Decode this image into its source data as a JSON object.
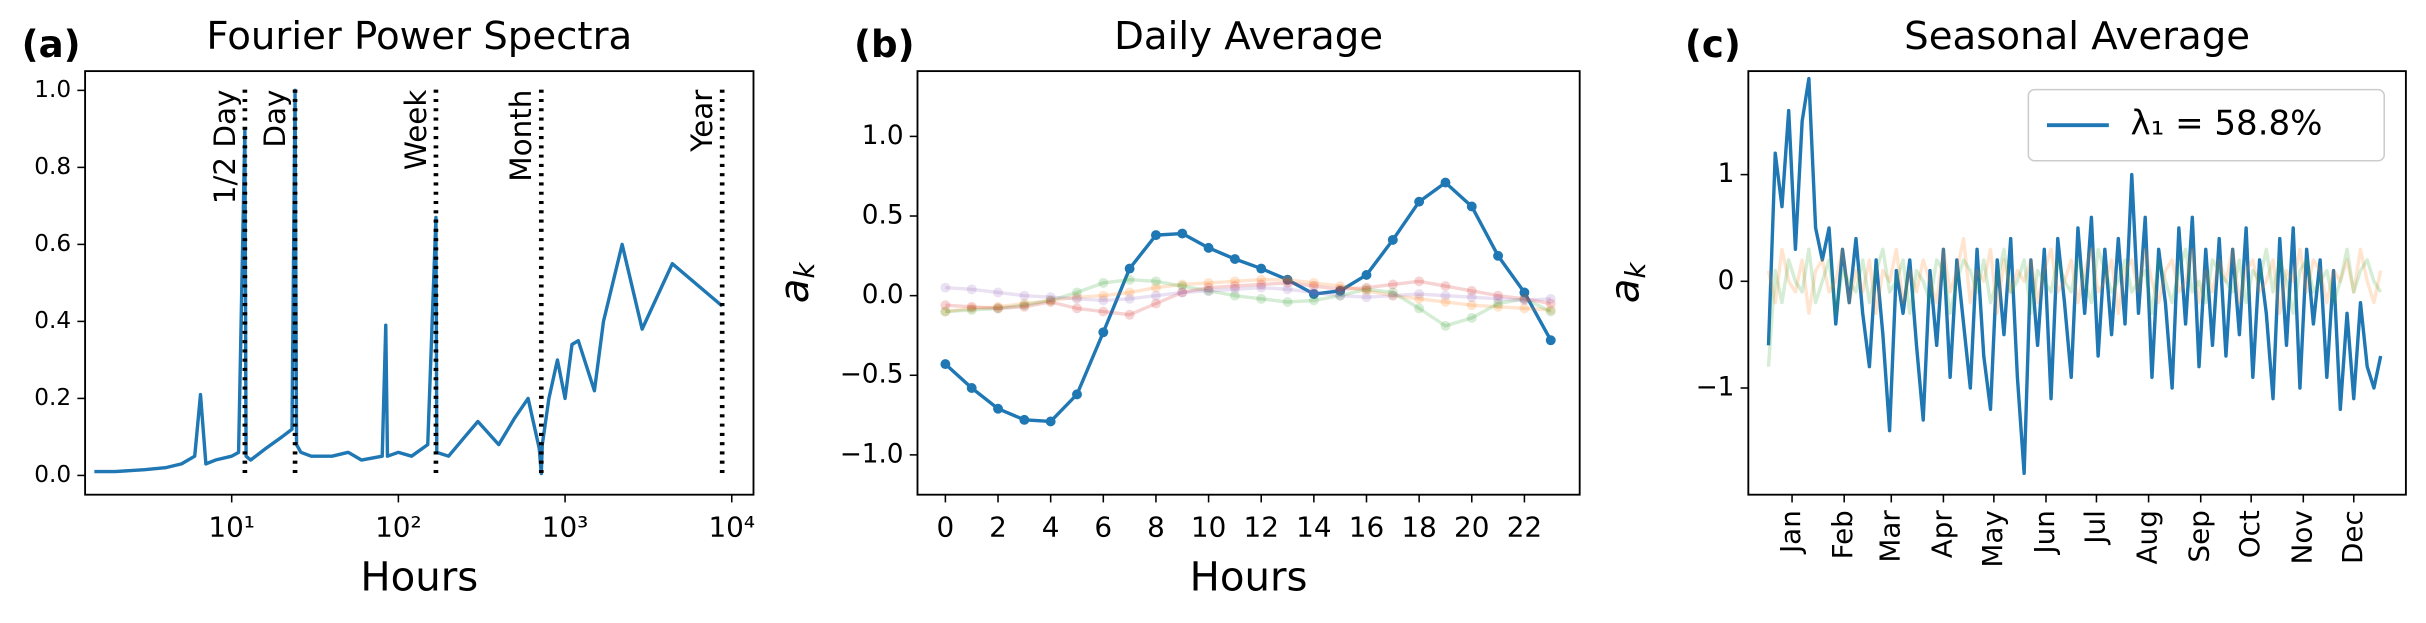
{
  "chart_data": [
    {
      "type": "line",
      "panel_label": "(a)",
      "title": "Fourier Power Spectra",
      "xlabel": "Hours",
      "xscale": "log",
      "xlim": [
        1.32,
        13500
      ],
      "ylim": [
        -0.05,
        1.05
      ],
      "xticks": [
        {
          "value": 10,
          "label": "10¹"
        },
        {
          "value": 100,
          "label": "10²"
        },
        {
          "value": 1000,
          "label": "10³"
        },
        {
          "value": 10000,
          "label": "10⁴"
        }
      ],
      "yticks": [
        {
          "value": 0,
          "label": "0.0"
        },
        {
          "value": 0.2,
          "label": "0.2"
        },
        {
          "value": 0.4,
          "label": "0.4"
        },
        {
          "value": 0.6,
          "label": "0.6"
        },
        {
          "value": 0.8,
          "label": "0.8"
        },
        {
          "value": 1,
          "label": "1.0"
        }
      ],
      "x": [
        1.5,
        2,
        3,
        4,
        5,
        6,
        6.5,
        7,
        8,
        10,
        11,
        12,
        12.2,
        13,
        16,
        20,
        23,
        24,
        24.5,
        26,
        30,
        40,
        50,
        60,
        80,
        84,
        86,
        100,
        120,
        150,
        168,
        170,
        200,
        250,
        300,
        400,
        500,
        600,
        700,
        720,
        730,
        800,
        900,
        1000,
        1100,
        1200,
        1500,
        1700,
        2200,
        2900,
        4400,
        8760
      ],
      "series": [
        {
          "color": "#1f77b4",
          "values": [
            0.01,
            0.01,
            0.015,
            0.02,
            0.03,
            0.05,
            0.21,
            0.03,
            0.04,
            0.05,
            0.06,
            0.9,
            0.05,
            0.04,
            0.07,
            0.1,
            0.12,
            1.0,
            0.08,
            0.06,
            0.05,
            0.05,
            0.06,
            0.04,
            0.05,
            0.39,
            0.05,
            0.06,
            0.05,
            0.08,
            0.67,
            0.06,
            0.05,
            0.1,
            0.14,
            0.08,
            0.15,
            0.2,
            0.07,
            0.005,
            0.08,
            0.2,
            0.3,
            0.2,
            0.34,
            0.35,
            0.22,
            0.4,
            0.6,
            0.38,
            0.55,
            0.44
          ]
        }
      ],
      "annotations": [
        {
          "x": 12,
          "label": "1/2 Day"
        },
        {
          "x": 24,
          "label": "Day"
        },
        {
          "x": 168,
          "label": "Week"
        },
        {
          "x": 720,
          "label": "Month"
        },
        {
          "x": 8760,
          "label": "Year"
        }
      ]
    },
    {
      "type": "line",
      "panel_label": "(b)",
      "title": "Daily Average",
      "xlabel": "Hours",
      "ylabel": "a",
      "ylabel_sub": "k",
      "marker": true,
      "xlim": [
        -1.06,
        24.1
      ],
      "ylim": [
        -1.25,
        1.41
      ],
      "xticks": [
        0,
        2,
        4,
        6,
        8,
        10,
        12,
        14,
        16,
        18,
        20,
        22
      ],
      "yticks": [
        {
          "value": -1,
          "label": "−1.0"
        },
        {
          "value": -0.5,
          "label": "−0.5"
        },
        {
          "value": 0,
          "label": "0.0"
        },
        {
          "value": 0.5,
          "label": "0.5"
        },
        {
          "value": 1,
          "label": "1.0"
        }
      ],
      "x": [
        0,
        1,
        2,
        3,
        4,
        5,
        6,
        7,
        8,
        9,
        10,
        11,
        12,
        13,
        14,
        15,
        16,
        17,
        18,
        19,
        20,
        21,
        22,
        23
      ],
      "series": [
        {
          "color": "#1f77b4",
          "values": [
            -0.43,
            -0.58,
            -0.71,
            -0.78,
            -0.79,
            -0.62,
            -0.23,
            0.17,
            0.38,
            0.39,
            0.3,
            0.23,
            0.17,
            0.1,
            0.01,
            0.03,
            0.13,
            0.35,
            0.59,
            0.71,
            0.56,
            0.25,
            0.02,
            -0.28
          ]
        },
        {
          "color": "#ff7f0e",
          "alpha": 0.2,
          "values": [
            -0.1,
            -0.08,
            -0.07,
            -0.05,
            -0.03,
            -0.01,
            0.0,
            0.02,
            0.05,
            0.07,
            0.08,
            0.09,
            0.1,
            0.1,
            0.08,
            0.06,
            0.03,
            0.0,
            -0.02,
            -0.04,
            -0.06,
            -0.07,
            -0.08,
            -0.09
          ]
        },
        {
          "color": "#2ca02c",
          "alpha": 0.2,
          "values": [
            -0.1,
            -0.09,
            -0.08,
            -0.06,
            -0.03,
            0.02,
            0.08,
            0.1,
            0.09,
            0.06,
            0.03,
            0.0,
            -0.02,
            -0.04,
            -0.03,
            0.0,
            0.04,
            0.02,
            -0.08,
            -0.19,
            -0.14,
            -0.05,
            -0.02,
            -0.1
          ]
        },
        {
          "color": "#d62728",
          "alpha": 0.2,
          "values": [
            -0.06,
            -0.07,
            -0.08,
            -0.07,
            -0.04,
            -0.08,
            -0.1,
            -0.12,
            -0.05,
            0.02,
            0.05,
            0.06,
            0.07,
            0.08,
            0.06,
            0.04,
            0.05,
            0.07,
            0.09,
            0.06,
            0.03,
            0.0,
            -0.02,
            -0.05
          ]
        },
        {
          "color": "#9467bd",
          "alpha": 0.2,
          "values": [
            0.05,
            0.04,
            0.02,
            0.0,
            -0.01,
            -0.02,
            -0.03,
            -0.02,
            0.0,
            0.02,
            0.03,
            0.04,
            0.05,
            0.04,
            0.02,
            0.0,
            -0.01,
            0.0,
            0.01,
            0.0,
            -0.01,
            -0.02,
            -0.03,
            -0.02
          ]
        }
      ]
    },
    {
      "type": "line",
      "panel_label": "(c)",
      "title": "Seasonal Average",
      "ylabel": "a",
      "ylabel_sub": "k",
      "legend": "upper right",
      "xlim": [
        -11,
        380
      ],
      "ylim": [
        -2.0,
        1.97
      ],
      "xticks": [
        {
          "value": 15,
          "label": "Jan"
        },
        {
          "value": 46,
          "label": "Feb"
        },
        {
          "value": 74,
          "label": "Mar"
        },
        {
          "value": 105,
          "label": "Apr"
        },
        {
          "value": 135,
          "label": "May"
        },
        {
          "value": 166,
          "label": "Jun"
        },
        {
          "value": 196,
          "label": "Jul"
        },
        {
          "value": 227,
          "label": "Aug"
        },
        {
          "value": 258,
          "label": "Sep"
        },
        {
          "value": 288,
          "label": "Oct"
        },
        {
          "value": 319,
          "label": "Nov"
        },
        {
          "value": 349,
          "label": "Dec"
        }
      ],
      "yticks": [
        {
          "value": -1,
          "label": "−1"
        },
        0,
        1
      ],
      "x": [
        1,
        5,
        9,
        13,
        17,
        21,
        25,
        29,
        33,
        37,
        41,
        45,
        49,
        53,
        57,
        61,
        65,
        69,
        73,
        77,
        81,
        85,
        89,
        93,
        97,
        101,
        105,
        109,
        113,
        117,
        121,
        125,
        129,
        133,
        137,
        141,
        145,
        149,
        153,
        157,
        161,
        165,
        169,
        173,
        177,
        181,
        185,
        189,
        193,
        197,
        201,
        205,
        209,
        213,
        217,
        221,
        225,
        229,
        233,
        237,
        241,
        245,
        249,
        253,
        257,
        261,
        265,
        269,
        273,
        277,
        281,
        285,
        289,
        293,
        297,
        301,
        305,
        309,
        313,
        317,
        321,
        325,
        329,
        333,
        337,
        341,
        345,
        349,
        353,
        357,
        361,
        365
      ],
      "series": [
        {
          "name": "λ₁ = 58.8%",
          "color": "#1f77b4",
          "values": [
            -0.6,
            1.2,
            0.7,
            1.6,
            0.3,
            1.5,
            1.9,
            0.5,
            0.2,
            0.5,
            -0.4,
            0.3,
            -0.2,
            0.4,
            -0.3,
            -0.8,
            0.2,
            -0.5,
            -1.4,
            0.1,
            -0.3,
            0.2,
            -0.6,
            -1.3,
            0.1,
            -0.6,
            0.3,
            -0.9,
            0.2,
            -0.4,
            -1.0,
            0.3,
            -0.7,
            -1.2,
            0.2,
            -0.5,
            0.4,
            -0.9,
            -1.8,
            0.2,
            -0.6,
            0.3,
            -1.1,
            0.4,
            -0.2,
            -0.9,
            0.5,
            -0.3,
            0.6,
            -0.7,
            0.3,
            -0.5,
            0.4,
            -0.4,
            1.0,
            -0.3,
            0.6,
            -0.9,
            0.3,
            -0.2,
            -1.0,
            0.5,
            -0.4,
            0.6,
            -0.8,
            0.3,
            -0.6,
            0.4,
            -0.7,
            0.3,
            -0.5,
            0.5,
            -0.9,
            0.2,
            -0.3,
            -1.1,
            0.4,
            -0.6,
            0.5,
            -1.0,
            0.3,
            -0.4,
            0.2,
            -0.9,
            0.1,
            -1.2,
            -0.3,
            -1.1,
            -0.2,
            -0.8,
            -1.0,
            -0.7
          ]
        },
        {
          "color": "#ff7f0e",
          "alpha": 0.2,
          "values": [
            0.1,
            -0.2,
            0.3,
            0.0,
            -0.1,
            0.2,
            -0.3,
            0.1,
            0.2,
            -0.1,
            0.0,
            0.3,
            -0.2,
            0.1,
            -0.1,
            0.2,
            -0.3,
            0.1,
            0.0,
            0.3,
            -0.2,
            0.1,
            -0.1,
            0.2,
            0.0,
            -0.2,
            0.3,
            -0.1,
            0.1,
            0.4,
            -0.2,
            0.1,
            0.0,
            0.3,
            -0.3,
            0.2,
            -0.1,
            0.1,
            0.0,
            0.2,
            -0.2,
            0.1,
            0.3,
            -0.1,
            0.0,
            0.2,
            -0.2,
            0.1,
            0.3,
            -0.1,
            0.0,
            0.2,
            -0.3,
            0.1,
            0.2,
            -0.1,
            0.3,
            0.0,
            -0.2,
            0.1,
            0.2,
            -0.1,
            0.0,
            0.3,
            -0.2,
            0.1,
            -0.1,
            0.2,
            0.0,
            0.3,
            -0.2,
            0.1,
            0.2,
            -0.1,
            0.0,
            0.2,
            -0.3,
            0.1,
            0.0,
            0.3,
            -0.1,
            0.2,
            0.1,
            -0.2,
            0.1,
            0.0,
            0.2,
            -0.1,
            0.3,
            0.0,
            -0.2,
            0.1
          ]
        },
        {
          "color": "#2ca02c",
          "alpha": 0.2,
          "values": [
            -0.8,
            0.1,
            -0.2,
            0.2,
            0.0,
            -0.1,
            0.3,
            -0.2,
            0.0,
            0.2,
            -0.3,
            0.1,
            0.0,
            -0.1,
            0.2,
            -0.2,
            0.1,
            0.3,
            -0.1,
            0.0,
            0.2,
            -0.3,
            0.1,
            0.0,
            -0.2,
            0.2,
            0.1,
            -0.3,
            0.0,
            0.2,
            0.1,
            -0.1,
            0.2,
            -0.2,
            0.0,
            0.3,
            -0.1,
            0.0,
            0.2,
            -0.3,
            0.1,
            0.0,
            -0.1,
            0.2,
            0.0,
            -0.1,
            0.2,
            0.0,
            -0.2,
            0.3,
            0.1,
            -0.1,
            0.0,
            0.2,
            -0.1,
            0.0,
            0.1,
            -0.3,
            0.2,
            0.0,
            -0.2,
            0.1,
            0.3,
            -0.1,
            0.0,
            -0.2,
            0.2,
            0.1,
            0.0,
            -0.1,
            0.2,
            -0.2,
            0.1,
            0.0,
            0.3,
            -0.1,
            0.2,
            0.0,
            -0.3,
            0.1,
            0.2,
            -0.1,
            0.0,
            0.1,
            -0.2,
            0.0,
            0.3,
            -0.1,
            0.1,
            0.2,
            0.0,
            -0.1
          ]
        }
      ]
    }
  ]
}
